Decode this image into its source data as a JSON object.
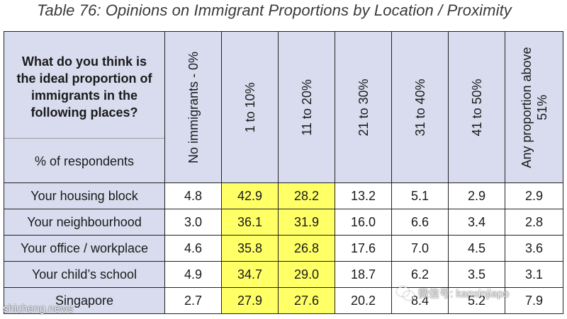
{
  "title": "Table 76: Opinions on Immigrant Proportions by Location / Proximity",
  "question": "What do you think is the ideal proportion of immigrants in the following places?",
  "question_lines": [
    "What do you think is",
    "the ideal proportion of",
    "immigrants in the",
    "following places?"
  ],
  "respondents_label": "% of respondents",
  "columns": [
    "No immigrants - 0%",
    "1 to 10%",
    "11 to 20%",
    "21 to 30%",
    "31 to 40%",
    "41 to 50%",
    "Any proportion above 51%"
  ],
  "rows": [
    {
      "label": "Your housing block",
      "values": [
        "4.8",
        "42.9",
        "28.2",
        "13.2",
        "5.1",
        "2.9",
        "2.9"
      ]
    },
    {
      "label": "Your neighbourhood",
      "values": [
        "3.0",
        "36.1",
        "31.9",
        "16.0",
        "6.6",
        "3.4",
        "2.8"
      ]
    },
    {
      "label": "Your office / workplace",
      "values": [
        "4.6",
        "35.8",
        "26.8",
        "17.6",
        "7.0",
        "4.5",
        "3.6"
      ]
    },
    {
      "label": "Your child’s school",
      "values": [
        "4.9",
        "34.7",
        "29.0",
        "18.7",
        "6.2",
        "3.5",
        "3.1"
      ]
    },
    {
      "label": "Singapore",
      "values": [
        "2.7",
        "27.9",
        "27.6",
        "20.2",
        "8.4",
        "5.2",
        "7.9"
      ]
    }
  ],
  "highlighted_columns": [
    1,
    2
  ],
  "colors": {
    "header_fill": "#d8dcee",
    "highlight_fill": "#ffff66",
    "border": "#222222"
  },
  "watermarks": {
    "left": "shicheng.news",
    "right": "微信号: kanxinjiapo",
    "icon": "wechat-icon"
  }
}
